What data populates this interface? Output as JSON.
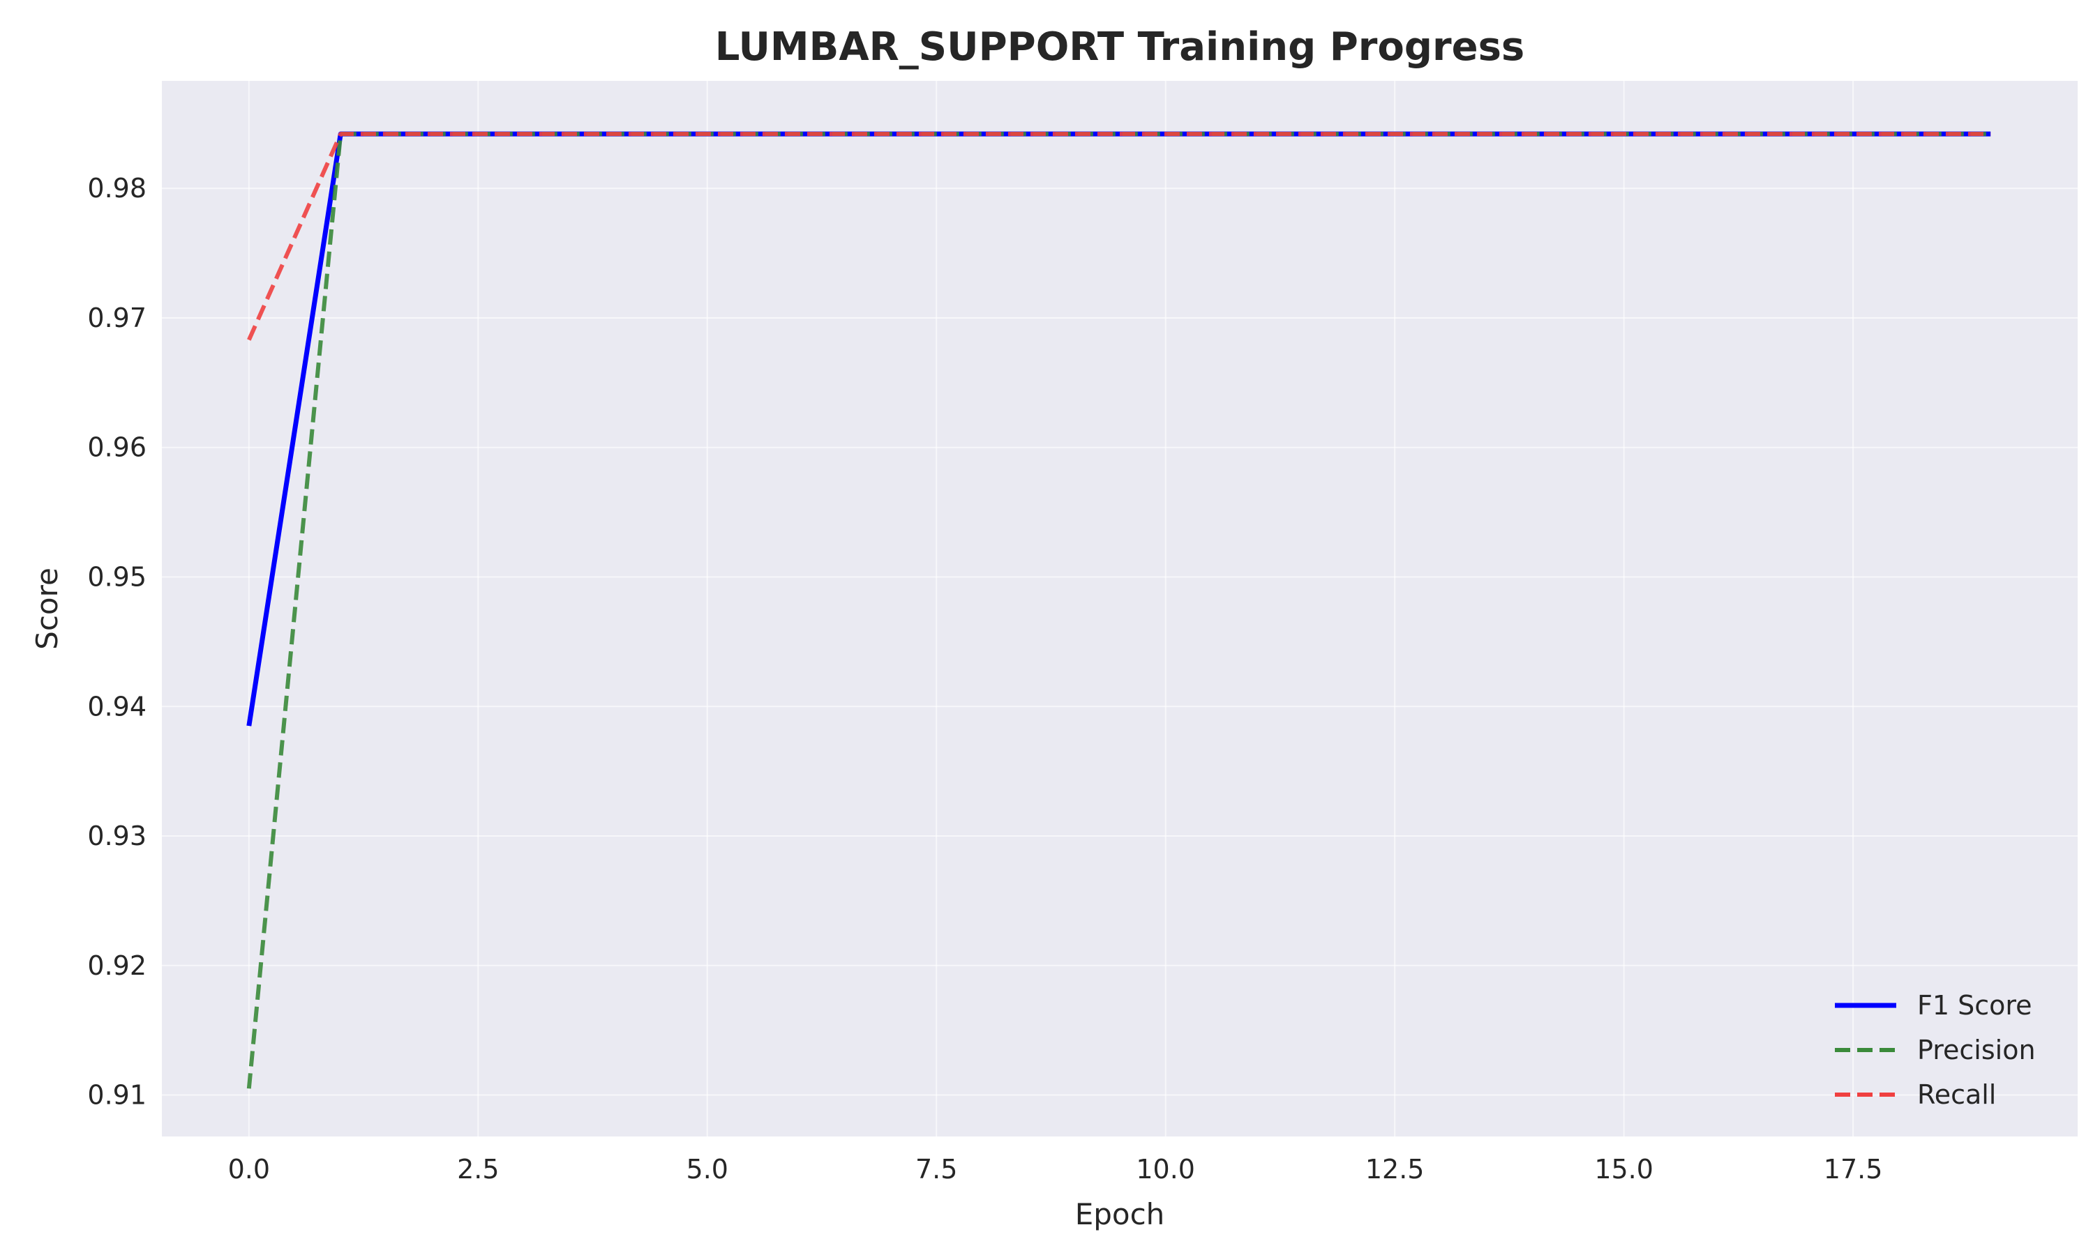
{
  "chart_data": {
    "type": "line",
    "title": "LUMBAR_SUPPORT Training Progress",
    "xlabel": "Epoch",
    "ylabel": "Score",
    "xlim": [
      -0.95,
      19.95
    ],
    "ylim": [
      0.9068,
      0.9883
    ],
    "x_ticks": [
      0.0,
      2.5,
      5.0,
      7.5,
      10.0,
      12.5,
      15.0,
      17.5
    ],
    "x_tick_labels": [
      "0.0",
      "2.5",
      "5.0",
      "7.5",
      "10.0",
      "12.5",
      "15.0",
      "17.5"
    ],
    "y_ticks": [
      0.91,
      0.92,
      0.93,
      0.94,
      0.95,
      0.96,
      0.97,
      0.98
    ],
    "y_tick_labels": [
      "0.91",
      "0.92",
      "0.93",
      "0.94",
      "0.95",
      "0.96",
      "0.97",
      "0.98"
    ],
    "grid": true,
    "legend_position": "lower-right",
    "x": [
      0,
      1,
      2,
      3,
      4,
      5,
      6,
      7,
      8,
      9,
      10,
      11,
      12,
      13,
      14,
      15,
      16,
      17,
      18,
      19
    ],
    "series": [
      {
        "name": "F1 Score",
        "color": "#0000ff",
        "style": "solid",
        "values": [
          0.9385,
          0.9842,
          0.9842,
          0.9842,
          0.9842,
          0.9842,
          0.9842,
          0.9842,
          0.9842,
          0.9842,
          0.9842,
          0.9842,
          0.9842,
          0.9842,
          0.9842,
          0.9842,
          0.9842,
          0.9842,
          0.9842,
          0.9842
        ]
      },
      {
        "name": "Precision",
        "color": "#3a8a3a",
        "style": "dashed",
        "values": [
          0.9105,
          0.9842,
          0.9842,
          0.9842,
          0.9842,
          0.9842,
          0.9842,
          0.9842,
          0.9842,
          0.9842,
          0.9842,
          0.9842,
          0.9842,
          0.9842,
          0.9842,
          0.9842,
          0.9842,
          0.9842,
          0.9842,
          0.9842
        ]
      },
      {
        "name": "Recall",
        "color": "#f04040",
        "style": "dashed",
        "values": [
          0.9683,
          0.9842,
          0.9842,
          0.9842,
          0.9842,
          0.9842,
          0.9842,
          0.9842,
          0.9842,
          0.9842,
          0.9842,
          0.9842,
          0.9842,
          0.9842,
          0.9842,
          0.9842,
          0.9842,
          0.9842,
          0.9842,
          0.9842
        ]
      }
    ],
    "background_color": "#eaeaf2",
    "grid_color": "#ffffff"
  }
}
